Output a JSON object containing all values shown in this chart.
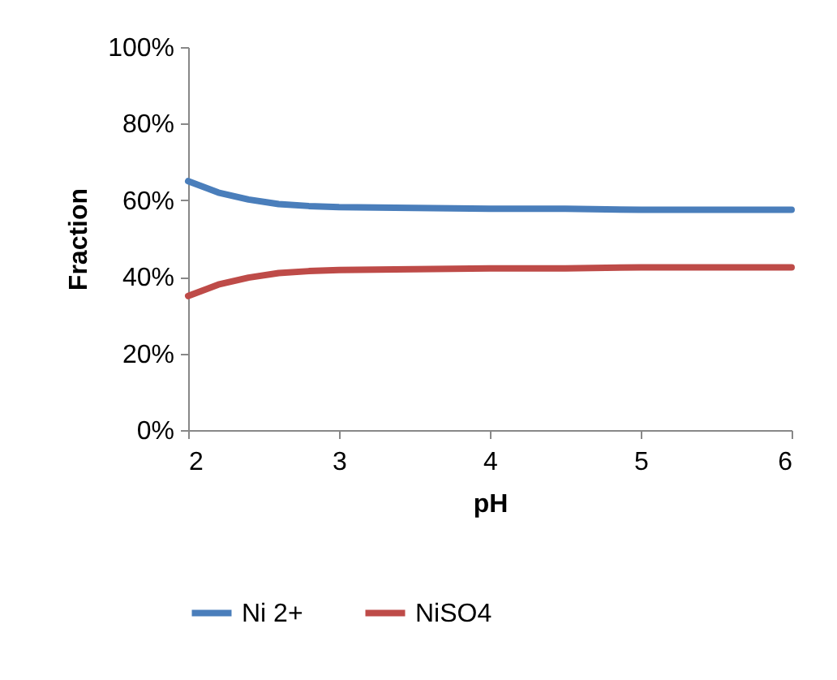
{
  "chart_data": {
    "type": "line",
    "xlabel": "pH",
    "ylabel": "Fraction",
    "x": [
      2,
      2.2,
      2.4,
      2.6,
      2.8,
      3,
      3.5,
      4,
      4.5,
      5,
      5.5,
      6
    ],
    "series": [
      {
        "name": "Ni 2+",
        "color": "#4a7ebb",
        "values": [
          65,
          62,
          60.2,
          59,
          58.5,
          58.2,
          58,
          57.8,
          57.8,
          57.5,
          57.5,
          57.5
        ]
      },
      {
        "name": "NiSO4",
        "color": "#be4b48",
        "values": [
          35,
          38,
          39.8,
          41,
          41.5,
          41.8,
          42,
          42.2,
          42.2,
          42.5,
          42.5,
          42.5
        ]
      }
    ],
    "xlim": [
      2,
      6
    ],
    "xticks": [
      2,
      3,
      4,
      5,
      6
    ],
    "ylim": [
      0,
      100
    ],
    "yticks": [
      {
        "value": 0,
        "label": "0%"
      },
      {
        "value": 20,
        "label": "20%"
      },
      {
        "value": 40,
        "label": "40%"
      },
      {
        "value": 60,
        "label": "60%"
      },
      {
        "value": 80,
        "label": "80%"
      },
      {
        "value": 100,
        "label": "100%"
      }
    ],
    "legend": "bottom",
    "line_style": "solid"
  }
}
